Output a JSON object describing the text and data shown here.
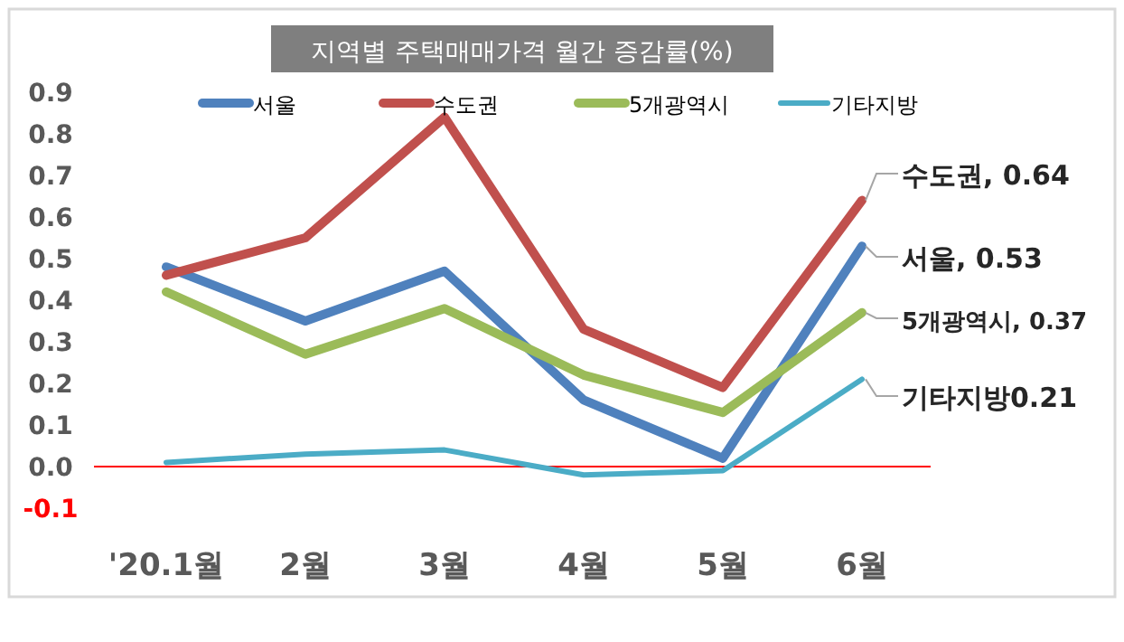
{
  "chart_data": {
    "type": "line",
    "title": "지역별 주택매매가격 월간 증감률(%)",
    "categories": [
      "'20.1월",
      "2월",
      "3월",
      "4월",
      "5월",
      "6월"
    ],
    "series": [
      {
        "name": "서울",
        "color": "#4f81bd",
        "values": [
          0.48,
          0.35,
          0.47,
          0.16,
          0.02,
          0.53
        ]
      },
      {
        "name": "수도권",
        "color": "#c0504d",
        "values": [
          0.46,
          0.55,
          0.84,
          0.33,
          0.19,
          0.64
        ]
      },
      {
        "name": "5개광역시",
        "color": "#9bbb59",
        "values": [
          0.42,
          0.27,
          0.38,
          0.22,
          0.13,
          0.37
        ]
      },
      {
        "name": "기타지방",
        "color": "#4bacc6",
        "values": [
          0.01,
          0.03,
          0.04,
          -0.02,
          -0.01,
          0.21
        ]
      }
    ],
    "ylim": [
      -0.1,
      0.9
    ],
    "yticks": [
      {
        "value": -0.1,
        "label": "-0.1"
      },
      {
        "value": 0,
        "label": "0.0"
      },
      {
        "value": 0.1,
        "label": "0.1"
      },
      {
        "value": 0.2,
        "label": "0.2"
      },
      {
        "value": 0.3,
        "label": "0.3"
      },
      {
        "value": 0.4,
        "label": "0.4"
      },
      {
        "value": 0.5,
        "label": "0.5"
      },
      {
        "value": 0.6,
        "label": "0.6"
      },
      {
        "value": 0.7,
        "label": "0.7"
      },
      {
        "value": 0.8,
        "label": "0.8"
      },
      {
        "value": 0.9,
        "label": "0.9"
      }
    ],
    "ref_lines": [
      {
        "axis": "y",
        "value": 0,
        "color": "#ff0000"
      }
    ],
    "annotations": [
      {
        "text": "수도권, 0.64",
        "x": "6월",
        "y": 0.64
      },
      {
        "text": "서울, 0.53",
        "x": "6월",
        "y": 0.53
      },
      {
        "text": "5개광역시, 0.37",
        "x": "6월",
        "y": 0.37
      },
      {
        "text": "기타지방0.21",
        "x": "6월",
        "y": 0.21
      }
    ],
    "grid": false,
    "legend": "top",
    "marker": "none",
    "line_style": "solid"
  }
}
